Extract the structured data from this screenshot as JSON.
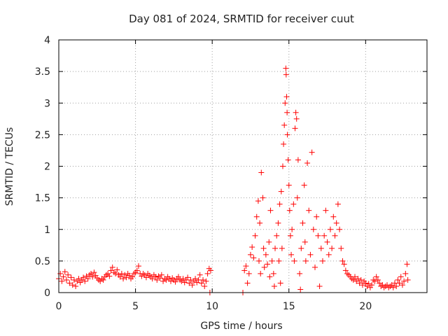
{
  "chart_data": {
    "type": "scatter",
    "title": "Day 081 of 2024, SRMTID for receiver cuut",
    "xlabel": "GPS time / hours",
    "ylabel": "SRMTID / TECUs",
    "xlim": [
      0,
      24
    ],
    "ylim": [
      0,
      4
    ],
    "xticks": [
      0,
      5,
      10,
      15,
      20
    ],
    "xtick_labels": [
      "0",
      "5",
      "10",
      "15",
      "20"
    ],
    "yticks": [
      0,
      0.5,
      1,
      1.5,
      2,
      2.5,
      3,
      3.5,
      4
    ],
    "ytick_labels": [
      "0",
      "0.5",
      "1",
      "1.5",
      "2",
      "2.5",
      "3",
      "3.5",
      "4"
    ],
    "grid": true,
    "marker": "+",
    "color": "#ff0000",
    "series": [
      {
        "name": "SRMTID",
        "points": [
          [
            0.0,
            0.22
          ],
          [
            0.1,
            0.3
          ],
          [
            0.2,
            0.18
          ],
          [
            0.3,
            0.25
          ],
          [
            0.4,
            0.33
          ],
          [
            0.5,
            0.2
          ],
          [
            0.6,
            0.28
          ],
          [
            0.7,
            0.15
          ],
          [
            0.8,
            0.24
          ],
          [
            0.9,
            0.12
          ],
          [
            1.0,
            0.2
          ],
          [
            1.1,
            0.1
          ],
          [
            1.2,
            0.18
          ],
          [
            1.3,
            0.22
          ],
          [
            1.4,
            0.16
          ],
          [
            1.5,
            0.2
          ],
          [
            1.6,
            0.24
          ],
          [
            1.7,
            0.18
          ],
          [
            1.8,
            0.26
          ],
          [
            1.9,
            0.22
          ],
          [
            2.0,
            0.28
          ],
          [
            2.1,
            0.3
          ],
          [
            2.2,
            0.25
          ],
          [
            2.3,
            0.32
          ],
          [
            2.4,
            0.27
          ],
          [
            2.5,
            0.23
          ],
          [
            2.6,
            0.2
          ],
          [
            2.7,
            0.18
          ],
          [
            2.8,
            0.22
          ],
          [
            2.9,
            0.2
          ],
          [
            3.0,
            0.25
          ],
          [
            3.1,
            0.28
          ],
          [
            3.2,
            0.3
          ],
          [
            3.3,
            0.26
          ],
          [
            3.4,
            0.35
          ],
          [
            3.5,
            0.4
          ],
          [
            3.6,
            0.32
          ],
          [
            3.7,
            0.3
          ],
          [
            3.8,
            0.36
          ],
          [
            3.9,
            0.28
          ],
          [
            4.0,
            0.25
          ],
          [
            4.1,
            0.3
          ],
          [
            4.2,
            0.22
          ],
          [
            4.3,
            0.28
          ],
          [
            4.4,
            0.24
          ],
          [
            4.5,
            0.3
          ],
          [
            4.6,
            0.27
          ],
          [
            4.7,
            0.22
          ],
          [
            4.8,
            0.25
          ],
          [
            4.9,
            0.3
          ],
          [
            5.0,
            0.32
          ],
          [
            5.1,
            0.35
          ],
          [
            5.2,
            0.42
          ],
          [
            5.3,
            0.3
          ],
          [
            5.4,
            0.26
          ],
          [
            5.5,
            0.3
          ],
          [
            5.6,
            0.28
          ],
          [
            5.7,
            0.24
          ],
          [
            5.8,
            0.3
          ],
          [
            5.9,
            0.27
          ],
          [
            6.0,
            0.25
          ],
          [
            6.1,
            0.22
          ],
          [
            6.2,
            0.28
          ],
          [
            6.3,
            0.25
          ],
          [
            6.4,
            0.2
          ],
          [
            6.5,
            0.26
          ],
          [
            6.6,
            0.23
          ],
          [
            6.7,
            0.28
          ],
          [
            6.8,
            0.18
          ],
          [
            6.9,
            0.22
          ],
          [
            7.0,
            0.2
          ],
          [
            7.1,
            0.25
          ],
          [
            7.2,
            0.22
          ],
          [
            7.3,
            0.18
          ],
          [
            7.4,
            0.23
          ],
          [
            7.5,
            0.2
          ],
          [
            7.6,
            0.17
          ],
          [
            7.7,
            0.22
          ],
          [
            7.8,
            0.25
          ],
          [
            7.9,
            0.2
          ],
          [
            8.0,
            0.18
          ],
          [
            8.1,
            0.22
          ],
          [
            8.2,
            0.16
          ],
          [
            8.3,
            0.2
          ],
          [
            8.4,
            0.24
          ],
          [
            8.5,
            0.15
          ],
          [
            8.6,
            0.2
          ],
          [
            8.7,
            0.12
          ],
          [
            8.8,
            0.18
          ],
          [
            8.9,
            0.22
          ],
          [
            9.0,
            0.16
          ],
          [
            9.1,
            0.2
          ],
          [
            9.2,
            0.28
          ],
          [
            9.3,
            0.15
          ],
          [
            9.4,
            0.2
          ],
          [
            9.5,
            0.1
          ],
          [
            9.6,
            0.18
          ],
          [
            9.7,
            0.3
          ],
          [
            9.8,
            0.38
          ],
          [
            9.9,
            0.35
          ],
          [
            9.85,
            0.0
          ],
          [
            12.0,
            0.0
          ],
          [
            12.1,
            0.35
          ],
          [
            12.2,
            0.42
          ],
          [
            12.3,
            0.15
          ],
          [
            12.4,
            0.3
          ],
          [
            12.5,
            0.6
          ],
          [
            12.6,
            0.72
          ],
          [
            12.7,
            0.55
          ],
          [
            12.8,
            0.9
          ],
          [
            12.9,
            1.2
          ],
          [
            13.0,
            1.45
          ],
          [
            13.05,
            0.5
          ],
          [
            13.1,
            1.1
          ],
          [
            13.15,
            0.3
          ],
          [
            13.2,
            1.9
          ],
          [
            13.3,
            1.5
          ],
          [
            13.35,
            0.7
          ],
          [
            13.4,
            0.4
          ],
          [
            13.5,
            0.6
          ],
          [
            13.6,
            0.45
          ],
          [
            13.7,
            0.8
          ],
          [
            13.75,
            0.25
          ],
          [
            13.8,
            1.3
          ],
          [
            13.9,
            0.5
          ],
          [
            14.0,
            0.3
          ],
          [
            14.05,
            0.1
          ],
          [
            14.1,
            0.7
          ],
          [
            14.2,
            0.9
          ],
          [
            14.3,
            1.1
          ],
          [
            14.35,
            0.5
          ],
          [
            14.4,
            1.4
          ],
          [
            14.45,
            0.15
          ],
          [
            14.5,
            1.6
          ],
          [
            14.55,
            0.7
          ],
          [
            14.6,
            2.0
          ],
          [
            14.65,
            2.35
          ],
          [
            14.7,
            2.65
          ],
          [
            14.75,
            3.0
          ],
          [
            14.8,
            3.55
          ],
          [
            14.82,
            3.45
          ],
          [
            14.85,
            3.1
          ],
          [
            14.88,
            2.85
          ],
          [
            14.9,
            2.5
          ],
          [
            14.95,
            2.1
          ],
          [
            15.0,
            1.7
          ],
          [
            15.05,
            1.3
          ],
          [
            15.1,
            0.9
          ],
          [
            15.15,
            0.6
          ],
          [
            15.2,
            1.0
          ],
          [
            15.3,
            1.4
          ],
          [
            15.35,
            0.5
          ],
          [
            15.4,
            2.6
          ],
          [
            15.45,
            2.85
          ],
          [
            15.5,
            2.75
          ],
          [
            15.55,
            1.5
          ],
          [
            15.6,
            2.1
          ],
          [
            15.7,
            0.3
          ],
          [
            15.75,
            0.05
          ],
          [
            15.8,
            0.7
          ],
          [
            15.9,
            1.1
          ],
          [
            16.0,
            1.7
          ],
          [
            16.05,
            0.8
          ],
          [
            16.1,
            0.5
          ],
          [
            16.2,
            2.05
          ],
          [
            16.3,
            1.3
          ],
          [
            16.4,
            0.6
          ],
          [
            16.5,
            2.22
          ],
          [
            16.6,
            1.0
          ],
          [
            16.7,
            0.4
          ],
          [
            16.8,
            1.2
          ],
          [
            16.9,
            0.9
          ],
          [
            17.0,
            0.1
          ],
          [
            17.1,
            0.7
          ],
          [
            17.2,
            0.5
          ],
          [
            17.3,
            0.9
          ],
          [
            17.4,
            1.3
          ],
          [
            17.5,
            0.8
          ],
          [
            17.6,
            0.6
          ],
          [
            17.7,
            1.0
          ],
          [
            17.8,
            0.7
          ],
          [
            17.9,
            1.2
          ],
          [
            18.0,
            0.9
          ],
          [
            18.1,
            1.1
          ],
          [
            18.2,
            1.4
          ],
          [
            18.3,
            1.0
          ],
          [
            18.4,
            0.7
          ],
          [
            18.5,
            0.5
          ],
          [
            18.6,
            0.45
          ],
          [
            18.7,
            0.35
          ],
          [
            18.8,
            0.3
          ],
          [
            18.9,
            0.28
          ],
          [
            19.0,
            0.25
          ],
          [
            19.1,
            0.22
          ],
          [
            19.2,
            0.2
          ],
          [
            19.3,
            0.25
          ],
          [
            19.4,
            0.18
          ],
          [
            19.5,
            0.22
          ],
          [
            19.6,
            0.15
          ],
          [
            19.7,
            0.2
          ],
          [
            19.8,
            0.12
          ],
          [
            19.9,
            0.18
          ],
          [
            20.0,
            0.15
          ],
          [
            20.1,
            0.1
          ],
          [
            20.2,
            0.14
          ],
          [
            20.3,
            0.08
          ],
          [
            20.4,
            0.12
          ],
          [
            20.5,
            0.2
          ],
          [
            20.6,
            0.18
          ],
          [
            20.7,
            0.25
          ],
          [
            20.8,
            0.2
          ],
          [
            20.9,
            0.15
          ],
          [
            21.0,
            0.1
          ],
          [
            21.1,
            0.12
          ],
          [
            21.2,
            0.08
          ],
          [
            21.3,
            0.1
          ],
          [
            21.4,
            0.12
          ],
          [
            21.5,
            0.08
          ],
          [
            21.6,
            0.1
          ],
          [
            21.7,
            0.12
          ],
          [
            21.8,
            0.08
          ],
          [
            21.9,
            0.15
          ],
          [
            22.0,
            0.1
          ],
          [
            22.1,
            0.2
          ],
          [
            22.2,
            0.15
          ],
          [
            22.3,
            0.25
          ],
          [
            22.4,
            0.12
          ],
          [
            22.5,
            0.18
          ],
          [
            22.6,
            0.3
          ],
          [
            22.7,
            0.45
          ],
          [
            22.75,
            0.2
          ]
        ]
      }
    ]
  }
}
